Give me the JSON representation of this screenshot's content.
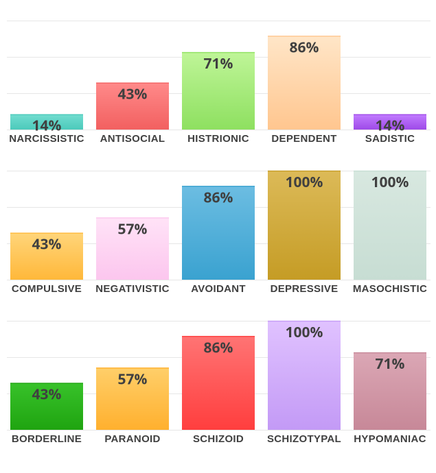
{
  "chart_data": [
    {
      "type": "bar",
      "ylim": [
        0,
        100
      ],
      "grid": true,
      "categories": [
        "NARCISSISTIC",
        "ANTISOCIAL",
        "HISTRIONIC",
        "DEPENDENT",
        "SADISTIC"
      ],
      "values": [
        14,
        43,
        71,
        86,
        14
      ],
      "value_labels": [
        "14%",
        "43%",
        "71%",
        "86%",
        "14%"
      ],
      "colors": [
        [
          "#72ddd0",
          "#4ccabb"
        ],
        [
          "#ff8a8a",
          "#f26060"
        ],
        [
          "#bff598",
          "#8ee060"
        ],
        [
          "#ffe6c8",
          "#ffc68f"
        ],
        [
          "#c27cff",
          "#9e4ae8"
        ]
      ]
    },
    {
      "type": "bar",
      "ylim": [
        0,
        100
      ],
      "grid": true,
      "categories": [
        "COMPULSIVE",
        "NEGATIVISTIC",
        "AVOIDANT",
        "DEPRESSIVE",
        "MASOCHISTIC"
      ],
      "values": [
        43,
        57,
        86,
        100,
        100
      ],
      "value_labels": [
        "43%",
        "57%",
        "86%",
        "100%",
        "100%"
      ],
      "colors": [
        [
          "#ffd57a",
          "#ffb83a"
        ],
        [
          "#ffe3f7",
          "#fcc6ee"
        ],
        [
          "#6cbde2",
          "#3aa2d0"
        ],
        [
          "#dcba58",
          "#c59c25"
        ],
        [
          "#d8e8e0",
          "#c7ddd3"
        ]
      ]
    },
    {
      "type": "bar",
      "ylim": [
        0,
        100
      ],
      "grid": true,
      "categories": [
        "BORDERLINE",
        "PARANOID",
        "SCHIZOID",
        "SCHIZOTYPAL",
        "HYPOMANIAC"
      ],
      "values": [
        43,
        57,
        86,
        100,
        71
      ],
      "value_labels": [
        "43%",
        "57%",
        "86%",
        "100%",
        "71%"
      ],
      "colors": [
        [
          "#38c22a",
          "#1fa410"
        ],
        [
          "#ffcf6a",
          "#ffb02e"
        ],
        [
          "#ff7474",
          "#ff3e3e"
        ],
        [
          "#e0c2ff",
          "#c39af6"
        ],
        [
          "#dba7b5",
          "#c78898"
        ]
      ]
    }
  ]
}
